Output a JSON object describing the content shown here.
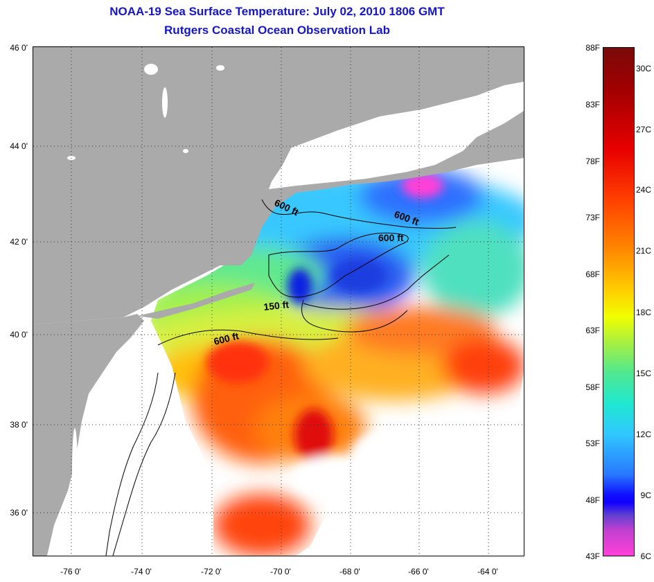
{
  "title": {
    "line1": "NOAA-19 Sea Surface Temperature:  July 02, 2010 1806 GMT",
    "line2": "Rutgers Coastal Ocean Observation Lab"
  },
  "map": {
    "latitude_labels": [
      "46 0'",
      "44 0'",
      "42 0'",
      "40 0'",
      "38 0'",
      "36 0'"
    ],
    "longitude_labels": [
      "-76 0'",
      "-74 0'",
      "-72 0'",
      "-70 0'",
      "-68 0'",
      "-66 0'",
      "-64 0'"
    ],
    "contour_labels": [
      "600 ft",
      "600 ft",
      "600 ft",
      "150 ft",
      "600 ft"
    ],
    "colors": {
      "land": "#aaaaaa",
      "ocean_nodata": "#ffffff",
      "grid": "#555555"
    }
  },
  "colorbar": {
    "fahrenheit_labels": [
      "88F",
      "83F",
      "78F",
      "73F",
      "68F",
      "63F",
      "58F",
      "53F",
      "48F",
      "43F"
    ],
    "celsius_labels": [
      "30C",
      "27C",
      "24C",
      "21C",
      "18C",
      "15C",
      "12C",
      "9C",
      "6C"
    ]
  }
}
